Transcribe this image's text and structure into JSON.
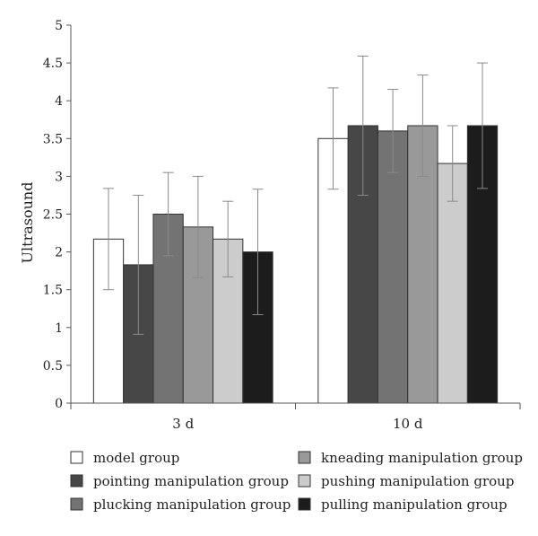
{
  "chart_data": {
    "type": "bar",
    "title": "",
    "xlabel": "",
    "ylabel": "Ultrasound",
    "ylim": [
      0,
      5
    ],
    "yticks": [
      "0",
      "0.5",
      "1",
      "1.5",
      "2",
      "2.5",
      "3",
      "3.5",
      "4",
      "4.5",
      "5"
    ],
    "categories": [
      "3 d",
      "10 d"
    ],
    "grid": false,
    "legend_position": "bottom",
    "series": [
      {
        "name": "model group",
        "color": "#ffffff",
        "values": [
          2.17,
          3.5
        ],
        "error": [
          0.67,
          0.67
        ]
      },
      {
        "name": "pointing manipulation group",
        "color": "#474747",
        "values": [
          1.83,
          3.67
        ],
        "error": [
          0.92,
          0.92
        ]
      },
      {
        "name": "plucking manipulation group",
        "color": "#737373",
        "values": [
          2.5,
          3.6
        ],
        "error": [
          0.55,
          0.55
        ]
      },
      {
        "name": "kneading manipulation group",
        "color": "#999999",
        "values": [
          2.33,
          3.67
        ],
        "error": [
          0.67,
          0.67
        ]
      },
      {
        "name": "pushing manipulation group",
        "color": "#cccccc",
        "values": [
          2.17,
          3.17
        ],
        "error": [
          0.5,
          0.5
        ]
      },
      {
        "name": "pulling manipulation group",
        "color": "#1c1c1c",
        "values": [
          2.0,
          3.67
        ],
        "error": [
          0.83,
          0.83
        ]
      }
    ]
  }
}
